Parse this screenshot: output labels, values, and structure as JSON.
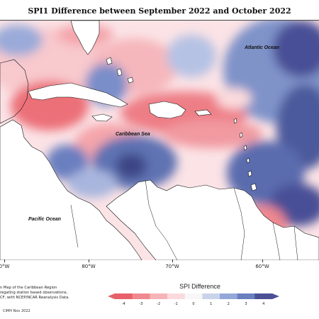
{
  "title": "SPI1 Difference between September 2022 and October 2022",
  "labels": {
    "atlantic": "Atlantic Ocean",
    "caribbean": "Caribbean Sea",
    "pacific": "Pacific Ocean"
  },
  "longitude_ticks": [
    "0°W",
    "80°W",
    "70°W",
    "60°W"
  ],
  "caption_lines": [
    "n Map of the Caribbean Region",
    "regating station based observations,",
    "CF, with NCEP/NCAR Reanalysis Data."
  ],
  "credit": "CIMH Nov 2022",
  "legend": {
    "title": "SPI Difference",
    "ticks": [
      "-4",
      "-3",
      "-2",
      "-1",
      "0",
      "1",
      "2",
      "3",
      "4"
    ],
    "colors": [
      "#e8606a",
      "#f08890",
      "#f6b4b8",
      "#fadadd",
      "#f7f7f7",
      "#c9d4ea",
      "#96a8d9",
      "#6a7fc0",
      "#4a4f96"
    ]
  }
}
